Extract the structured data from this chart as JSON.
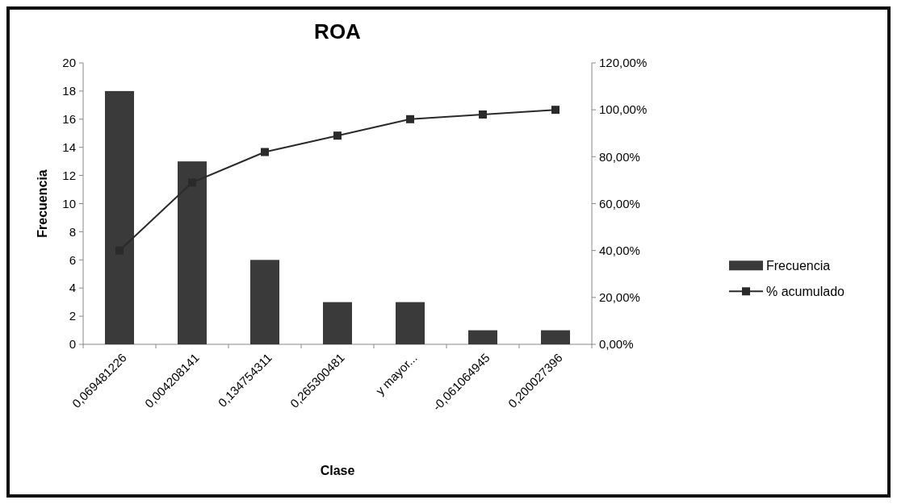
{
  "chart_data": {
    "type": "bar",
    "title": "ROA",
    "xlabel": "Clase",
    "ylabel": "Frecuencia",
    "categories": [
      "0,069481226",
      "0,004208141",
      "0,134754311",
      "0,265300481",
      "y mayor...",
      "-0,061064945",
      "0,200027396"
    ],
    "series": [
      {
        "name": "Frecuencia",
        "color": "#3a3a3a",
        "values": [
          18,
          13,
          6,
          3,
          3,
          1,
          1
        ]
      },
      {
        "name": "% acumulado",
        "type": "line",
        "axis": "y2",
        "color": "#2a2a2a",
        "marker": "square",
        "values": [
          40,
          69,
          82,
          89,
          96,
          98,
          100
        ]
      }
    ],
    "ylim": [
      0,
      20
    ],
    "yticks": [
      0,
      2,
      4,
      6,
      8,
      10,
      12,
      14,
      16,
      18,
      20
    ],
    "y2lim": [
      0,
      120
    ],
    "y2ticks": [
      {
        "value": 0,
        "label": "0,00%"
      },
      {
        "value": 20,
        "label": "20,00%"
      },
      {
        "value": 40,
        "label": "40,00%"
      },
      {
        "value": 60,
        "label": "60,00%"
      },
      {
        "value": 80,
        "label": "80,00%"
      },
      {
        "value": 100,
        "label": "100,00%"
      },
      {
        "value": 120,
        "label": "120,00%"
      }
    ],
    "legend": "right"
  }
}
